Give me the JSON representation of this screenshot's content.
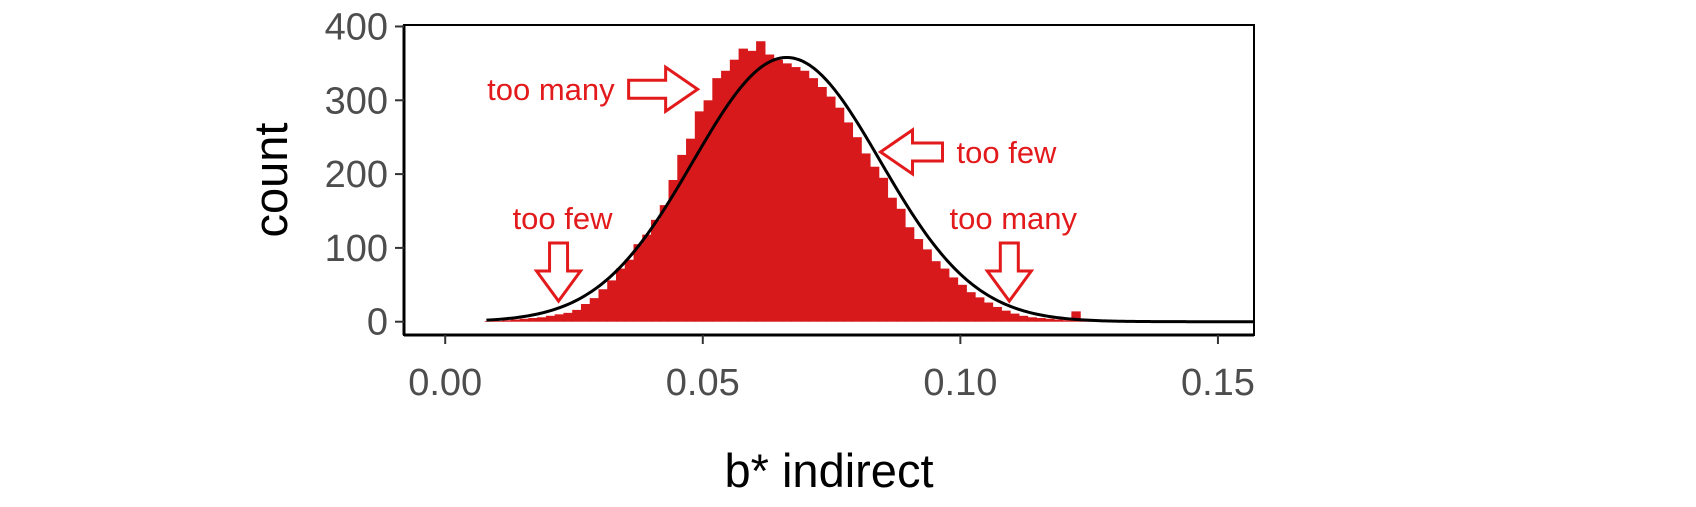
{
  "colors": {
    "bar_fill": "#d7191c",
    "curve": "#000000",
    "annotation": "#e31a1c",
    "tick_text": "#4d4d4d",
    "axis_line": "#000000"
  },
  "chart_data": {
    "type": "bar",
    "subtype": "histogram with overlaid normal density curve",
    "title": "",
    "xlabel": "b* indirect",
    "ylabel": "count",
    "xlim": [
      -0.008,
      0.157
    ],
    "ylim": [
      -18,
      402
    ],
    "x_ticks": [
      0.0,
      0.05,
      0.1,
      0.15
    ],
    "x_tick_labels": [
      "0.00",
      "0.05",
      "0.10",
      "0.15"
    ],
    "y_ticks": [
      0,
      100,
      200,
      300,
      400
    ],
    "y_tick_labels": [
      "0",
      "100",
      "200",
      "300",
      "400"
    ],
    "grid": false,
    "legend": "none",
    "bin_width": 0.0017,
    "bins": {
      "x": [
        0.0085,
        0.0102,
        0.0119,
        0.0136,
        0.0153,
        0.017,
        0.0187,
        0.0204,
        0.0221,
        0.0238,
        0.0255,
        0.0272,
        0.0289,
        0.0306,
        0.0323,
        0.034,
        0.0357,
        0.0374,
        0.0391,
        0.0408,
        0.0425,
        0.0442,
        0.0459,
        0.0476,
        0.0493,
        0.051,
        0.0527,
        0.0544,
        0.0561,
        0.0578,
        0.0595,
        0.0612,
        0.0629,
        0.0646,
        0.0663,
        0.068,
        0.0697,
        0.0714,
        0.0731,
        0.0748,
        0.0765,
        0.0782,
        0.0799,
        0.0816,
        0.0833,
        0.085,
        0.0867,
        0.0884,
        0.0901,
        0.0918,
        0.0935,
        0.0952,
        0.0969,
        0.0986,
        0.1003,
        0.102,
        0.1037,
        0.1054,
        0.1071,
        0.1088,
        0.1105,
        0.1122,
        0.1139,
        0.1156,
        0.1173,
        0.119,
        0.1207,
        0.1224,
        0.1241,
        0.1258
      ],
      "counts": [
        1,
        1,
        2,
        3,
        4,
        5,
        6,
        8,
        10,
        12,
        16,
        24,
        32,
        44,
        56,
        72,
        84,
        105,
        118,
        138,
        158,
        192,
        226,
        248,
        285,
        300,
        330,
        340,
        355,
        370,
        367,
        380,
        362,
        355,
        350,
        345,
        340,
        330,
        318,
        305,
        290,
        270,
        250,
        228,
        210,
        195,
        168,
        153,
        128,
        112,
        98,
        82,
        72,
        60,
        50,
        40,
        33,
        26,
        20,
        15,
        11,
        8,
        6,
        5,
        4,
        3,
        2,
        14,
        1,
        1
      ]
    },
    "normal_curve": {
      "mean": 0.0663,
      "sd": 0.0182,
      "peak_count": 358,
      "x_range": [
        0.008,
        0.157
      ]
    },
    "annotations": [
      {
        "text": "too many",
        "arrow_direction": "right",
        "arrow_tip_x": 0.049,
        "arrow_tip_y": 315
      },
      {
        "text": "too few",
        "arrow_direction": "left",
        "arrow_tip_x": 0.0845,
        "arrow_tip_y": 230
      },
      {
        "text": "too few",
        "arrow_direction": "down",
        "arrow_tip_x": 0.022,
        "arrow_tip_y": 28
      },
      {
        "text": "too many",
        "arrow_direction": "down",
        "arrow_tip_x": 0.1095,
        "arrow_tip_y": 28
      }
    ]
  }
}
